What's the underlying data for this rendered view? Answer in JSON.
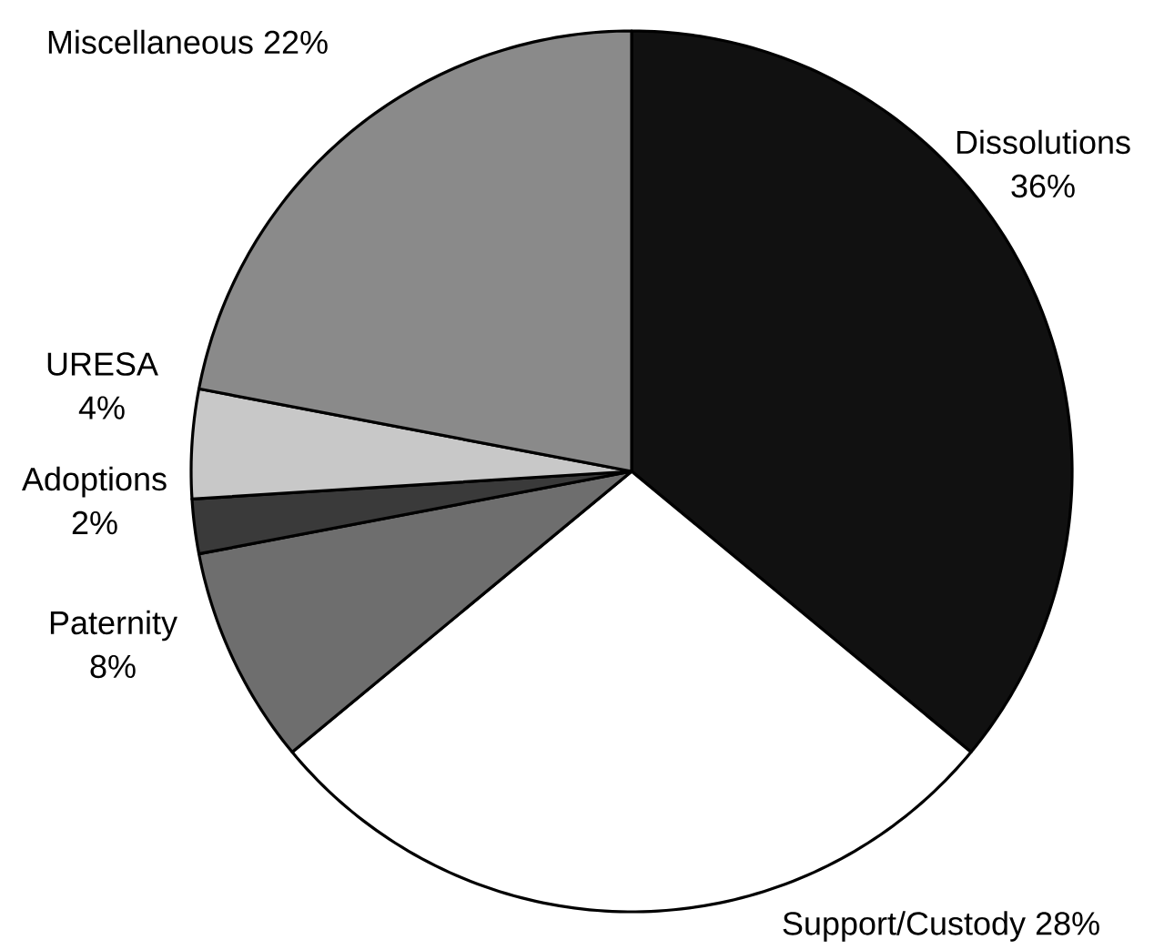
{
  "chart_data": {
    "type": "pie",
    "categories": [
      "Dissolutions",
      "Support/Custody",
      "Paternity",
      "Adoptions",
      "URESA",
      "Miscellaneous"
    ],
    "values": [
      36,
      28,
      8,
      2,
      4,
      22
    ],
    "value_labels": [
      "36%",
      "28%",
      "8%",
      "2%",
      "4%",
      "22%"
    ],
    "colors": [
      "#111111",
      "#ffffff",
      "#6e6e6e",
      "#3a3a3a",
      "#c8c8c8",
      "#8a8a8a"
    ]
  }
}
